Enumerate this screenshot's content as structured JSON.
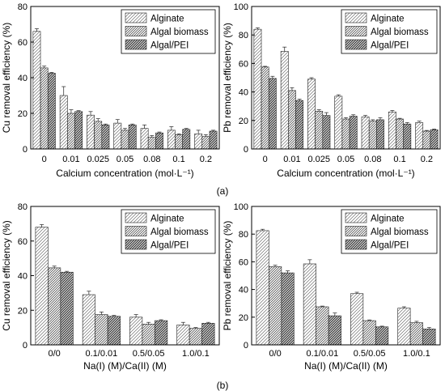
{
  "figure": {
    "row_labels": [
      "(a)",
      "(b)"
    ]
  },
  "legend": {
    "entries": [
      "Alginate",
      "Algal biomass",
      "Algal/PEI"
    ]
  },
  "chart_data": [
    {
      "type": "bar",
      "ylabel": "Cu removal efficiency (%)",
      "xlabel": "Calcium concentration (mol·L⁻¹)",
      "categories": [
        "0",
        "0.01",
        "0.025",
        "0.05",
        "0.08",
        "0.1",
        "0.2"
      ],
      "ylim": [
        0,
        80
      ],
      "yticks": [
        0,
        20,
        40,
        60,
        80
      ],
      "legend_position": "top-right",
      "series": [
        {
          "name": "Alginate",
          "values": [
            66,
            30,
            19,
            14.5,
            11.5,
            10.5,
            8.5
          ],
          "errors": [
            1.5,
            5,
            2,
            2,
            2,
            2,
            2
          ]
        },
        {
          "name": "Algal biomass",
          "values": [
            45.5,
            20,
            15.5,
            10.5,
            6.5,
            8,
            7
          ],
          "errors": [
            1,
            2,
            1.5,
            1,
            1,
            0.5,
            1
          ]
        },
        {
          "name": "Algal/PEI",
          "values": [
            42.5,
            21,
            13.5,
            13.5,
            9,
            11,
            10
          ],
          "errors": [
            0.5,
            0.5,
            0.5,
            0.5,
            0.5,
            0.5,
            0.5
          ]
        }
      ]
    },
    {
      "type": "bar",
      "ylabel": "Pb removal efficiency (%)",
      "xlabel": "Calcium concentration (mol·L⁻¹)",
      "categories": [
        "0",
        "0.01",
        "0.025",
        "0.05",
        "0.08",
        "0.1",
        "0.2"
      ],
      "ylim": [
        0,
        100
      ],
      "yticks": [
        0,
        20,
        40,
        60,
        80,
        100
      ],
      "legend_position": "top-right",
      "series": [
        {
          "name": "Alginate",
          "values": [
            84,
            68.5,
            49,
            37,
            22.5,
            26,
            18.5
          ],
          "errors": [
            1,
            3,
            1,
            1,
            1,
            1,
            1
          ]
        },
        {
          "name": "Algal biomass",
          "values": [
            57.5,
            41,
            26.5,
            21,
            19.5,
            21,
            12.5
          ],
          "errors": [
            0.5,
            2,
            1,
            1,
            1,
            0.5,
            0.5
          ]
        },
        {
          "name": "Algal/PEI",
          "values": [
            49.5,
            34,
            23.5,
            23,
            20.5,
            17.5,
            13.5
          ],
          "errors": [
            1.5,
            1,
            2,
            1,
            1.5,
            1,
            0.5
          ]
        }
      ]
    },
    {
      "type": "bar",
      "ylabel": "Cu removal efficiency (%)",
      "xlabel": "Na(I) (M)/Ca(II) (M)",
      "categories": [
        "0/0",
        "0.1/0.01",
        "0.5/0.05",
        "1.0/0.1"
      ],
      "ylim": [
        0,
        80
      ],
      "yticks": [
        0,
        20,
        40,
        60,
        80
      ],
      "legend_position": "top-right",
      "series": [
        {
          "name": "Alginate",
          "values": [
            68,
            29,
            16,
            11.5
          ],
          "errors": [
            1.5,
            2,
            1.5,
            1.5
          ]
        },
        {
          "name": "Algal biomass",
          "values": [
            44.5,
            17.5,
            12,
            9.5
          ],
          "errors": [
            1,
            1.5,
            1,
            0.5
          ]
        },
        {
          "name": "Algal/PEI",
          "values": [
            42,
            16.5,
            14,
            12.5
          ],
          "errors": [
            0.5,
            0.5,
            0.5,
            0.5
          ]
        }
      ]
    },
    {
      "type": "bar",
      "ylabel": "Pb removal efficiency (%)",
      "xlabel": "Na(I) (M)/Ca(II) (M)",
      "categories": [
        "0/0",
        "0.1/0.01",
        "0.5/0.05",
        "1.0/0.1"
      ],
      "ylim": [
        0,
        100
      ],
      "yticks": [
        0,
        20,
        40,
        60,
        80,
        100
      ],
      "legend_position": "top-right",
      "series": [
        {
          "name": "Alginate",
          "values": [
            82.5,
            58.5,
            37,
            26.5
          ],
          "errors": [
            1,
            3,
            1,
            1
          ]
        },
        {
          "name": "Algal biomass",
          "values": [
            56.5,
            27.5,
            17.5,
            16
          ],
          "errors": [
            1,
            0.5,
            0.5,
            1
          ]
        },
        {
          "name": "Algal/PEI",
          "values": [
            52,
            21,
            13,
            11.5
          ],
          "errors": [
            1.5,
            2,
            0.5,
            1
          ]
        }
      ]
    }
  ]
}
